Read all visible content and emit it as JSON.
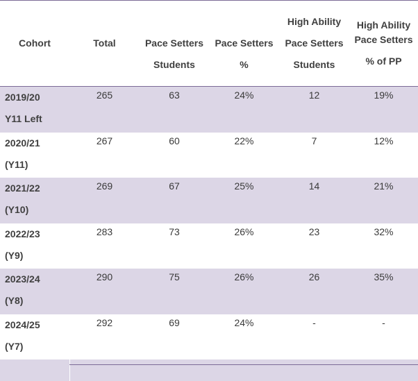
{
  "headers": {
    "cohort": "Cohort",
    "total": "Total",
    "ps_students_1": "Pace Setters",
    "ps_students_2": "Students",
    "ps_pct_1": "Pace Setters",
    "ps_pct_2": "%",
    "ha_students_1": "High Ability",
    "ha_students_2": "Pace Setters",
    "ha_students_3": "Students",
    "ha_pp_1": "High Ability",
    "ha_pp_2": "Pace Setters",
    "ha_pp_3": "% of PP"
  },
  "rows": [
    {
      "cohort_1": "2019/20",
      "cohort_2": "Y11 Left",
      "total": "265",
      "ps_students": "63",
      "ps_pct": "24%",
      "ha_students": "12",
      "ha_pp": "19%"
    },
    {
      "cohort_1": "2020/21",
      "cohort_2": "(Y11)",
      "total": "267",
      "ps_students": "60",
      "ps_pct": "22%",
      "ha_students": "7",
      "ha_pp": "12%"
    },
    {
      "cohort_1": "2021/22",
      "cohort_2": "(Y10)",
      "total": "269",
      "ps_students": "67",
      "ps_pct": "25%",
      "ha_students": "14",
      "ha_pp": "21%"
    },
    {
      "cohort_1": "2022/23",
      "cohort_2": "(Y9)",
      "total": "283",
      "ps_students": "73",
      "ps_pct": "26%",
      "ha_students": "23",
      "ha_pp": "32%"
    },
    {
      "cohort_1": "2023/24",
      "cohort_2": "(Y8)",
      "total": "290",
      "ps_students": "75",
      "ps_pct": "26%",
      "ha_students": "26",
      "ha_pp": "35%"
    },
    {
      "cohort_1": "2024/25",
      "cohort_2": "(Y7)",
      "total": "292",
      "ps_students": "69",
      "ps_pct": "24%",
      "ha_students": "-",
      "ha_pp": "-"
    }
  ],
  "colors": {
    "row_shade": "#dcd6e6",
    "rule": "#7b6a96",
    "text": "#3a3a3a"
  }
}
